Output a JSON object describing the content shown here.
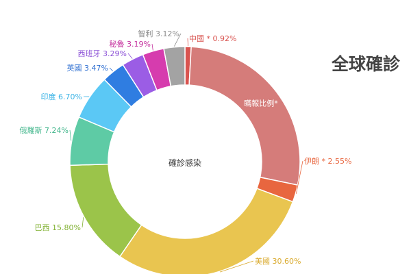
{
  "chart_data": {
    "type": "pie",
    "title": "全球確診",
    "center_label": "確診感染",
    "slices": [
      {
        "label": "中國 * 0.92%",
        "value": 0.92,
        "color": "#d9534f"
      },
      {
        "label": "",
        "value": 29.0,
        "color": "#d57c7a",
        "inner_text": "瞞報比例*"
      },
      {
        "label": "伊朗 * 2.55%",
        "value": 2.55,
        "color": "#e8663f"
      },
      {
        "label": "美國 30.60%",
        "value": 30.6,
        "color": "#e9c550"
      },
      {
        "label": "巴西 15.80%",
        "value": 15.8,
        "color": "#9bc44a"
      },
      {
        "label": "俄羅斯 7.24%",
        "value": 7.24,
        "color": "#5ecba5"
      },
      {
        "label": "印度 6.70%",
        "value": 6.7,
        "color": "#5bc8f5"
      },
      {
        "label": "英國 3.47%",
        "value": 3.47,
        "color": "#2f7de1"
      },
      {
        "label": "西班牙 3.29%",
        "value": 3.29,
        "color": "#9b5de5"
      },
      {
        "label": "秘魯 3.19%",
        "value": 3.19,
        "color": "#d63cae"
      },
      {
        "label": "智利 3.12%",
        "value": 3.12,
        "color": "#a3a3a3"
      }
    ],
    "label_colors": {
      "中國": "#d9534f",
      "伊朗": "#e8663f",
      "美國": "#d9a92b",
      "巴西": "#7fb02f",
      "俄羅斯": "#3fb58a",
      "印度": "#3ab3e6",
      "英國": "#2f6fd1",
      "西班牙": "#8a4fd6",
      "秘魯": "#c42e9d",
      "智利": "#8a8a8a"
    }
  }
}
